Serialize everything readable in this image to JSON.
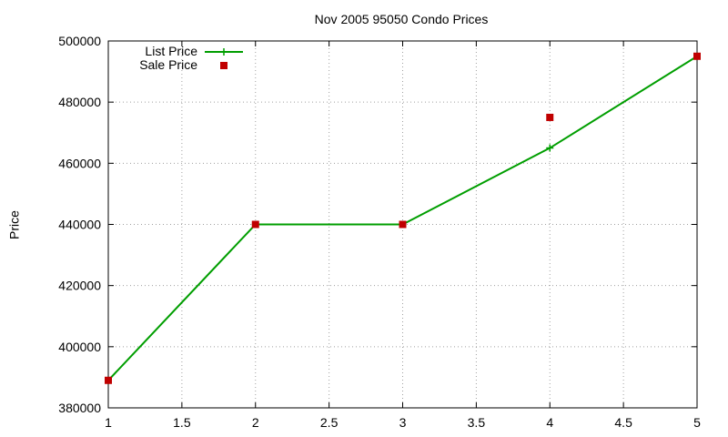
{
  "chart_data": {
    "type": "line",
    "title": "Nov 2005 95050 Condo Prices",
    "xlabel": "",
    "ylabel": "Price",
    "xlim": [
      1,
      5
    ],
    "ylim": [
      380000,
      500000
    ],
    "x_ticks": [
      "1",
      "1.5",
      "2",
      "2.5",
      "3",
      "3.5",
      "4",
      "4.5",
      "5"
    ],
    "y_ticks": [
      "380000",
      "400000",
      "420000",
      "440000",
      "460000",
      "480000",
      "500000"
    ],
    "grid": true,
    "legend_position": "top-left",
    "series": [
      {
        "name": "List Price",
        "style": "line+cross",
        "color": "#009e00",
        "x": [
          1,
          2,
          3,
          4,
          5
        ],
        "y": [
          389000,
          440000,
          440000,
          465000,
          495000
        ]
      },
      {
        "name": "Sale Price",
        "style": "square",
        "color": "#c00000",
        "x": [
          1,
          2,
          3,
          4,
          5
        ],
        "y": [
          389000,
          440000,
          440000,
          475000,
          495000
        ]
      }
    ]
  }
}
